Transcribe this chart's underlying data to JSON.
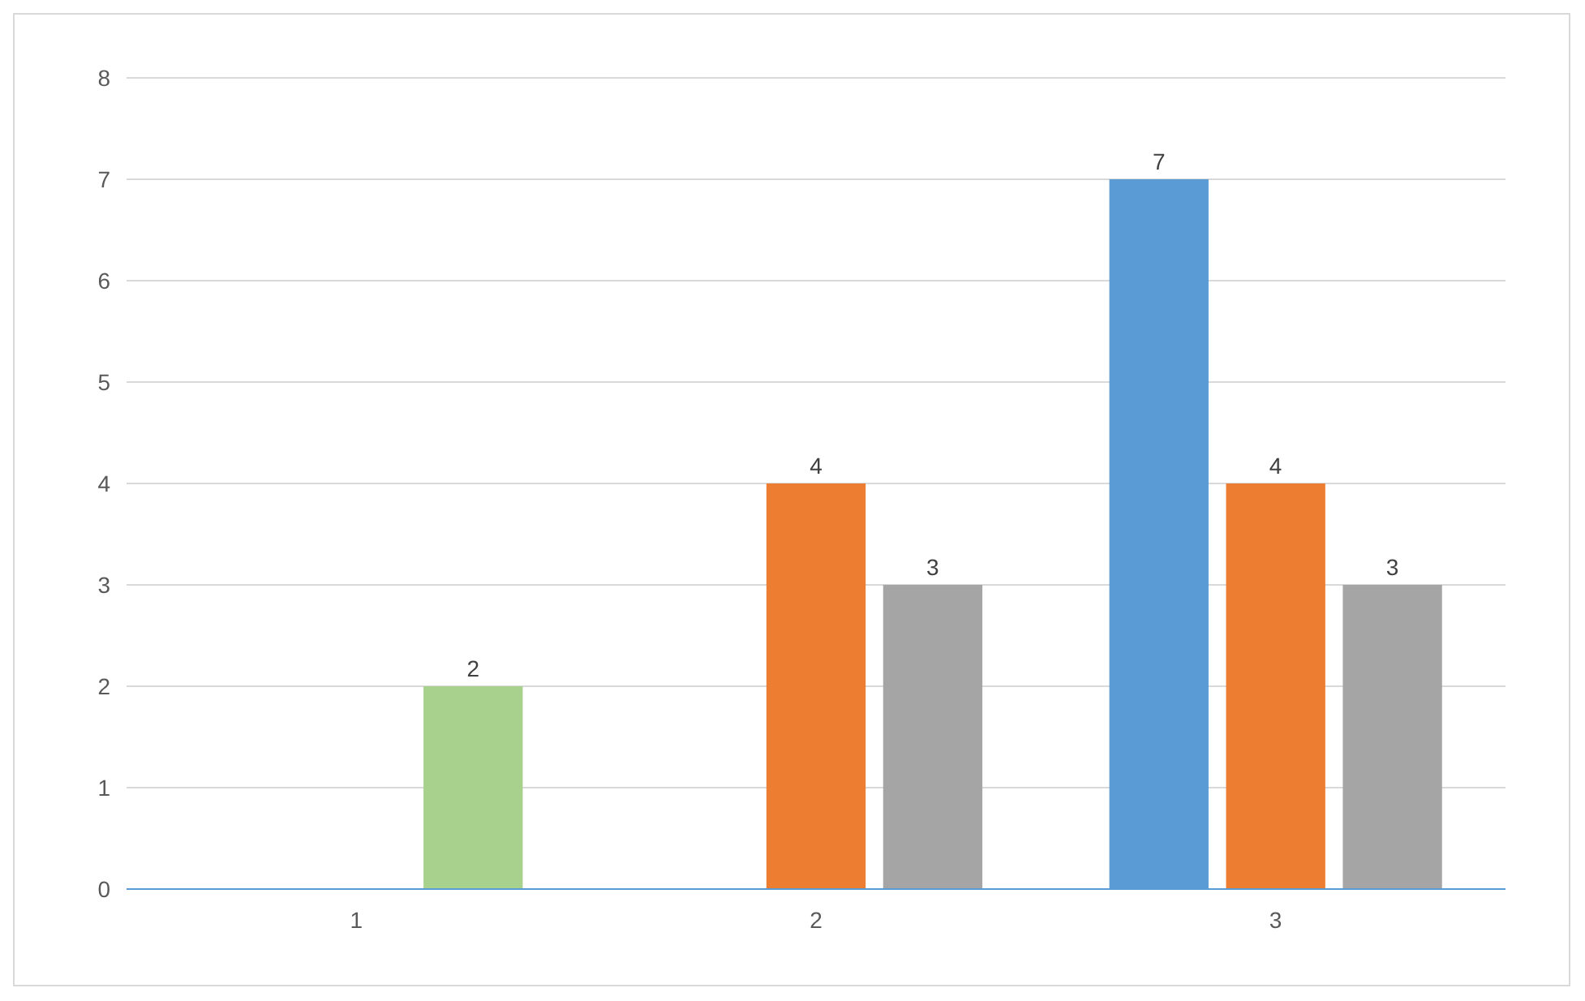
{
  "chart_data": {
    "type": "bar",
    "categories": [
      "1",
      "2",
      "3"
    ],
    "series": [
      {
        "color": "#5b9bd5",
        "values": [
          null,
          null,
          7
        ]
      },
      {
        "color": "#ed7d31",
        "values": [
          null,
          4,
          4
        ]
      },
      {
        "colors": [
          "#a9d18e",
          "#a5a5a5",
          "#a5a5a5"
        ],
        "values": [
          2,
          3,
          3
        ]
      }
    ],
    "ylim": [
      0,
      8
    ],
    "yticks": [
      0,
      1,
      2,
      3,
      4,
      5,
      6,
      7,
      8
    ],
    "grid": "y",
    "data_labels": true
  }
}
